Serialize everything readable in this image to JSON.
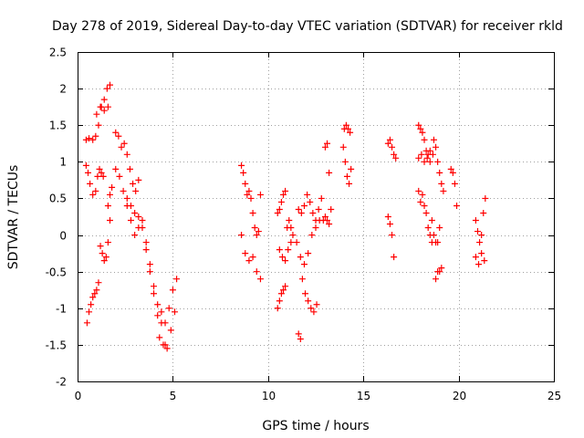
{
  "chart_data": {
    "type": "scatter",
    "title": "Day 278 of 2019, Sidereal Day-to-day VTEC variation (SDTVAR) for receiver rkld",
    "xlabel": "GPS time / hours",
    "ylabel": "SDTVAR / TECUs",
    "xlim": [
      0,
      25
    ],
    "ylim": [
      -2,
      2.5
    ],
    "xticks": [
      "0",
      "5",
      "10",
      "15",
      "20",
      "25"
    ],
    "yticks": [
      "-2",
      "-1.5",
      "-1",
      "-0.5",
      "0",
      "0.5",
      "1",
      "1.5",
      "2",
      "2.5"
    ],
    "grid": true,
    "marker": "+",
    "color": "#ff0000",
    "segments": [
      {
        "name": "a1",
        "x": [
          0.45,
          0.55,
          0.65,
          0.8,
          0.95,
          1.05,
          1.15,
          1.25,
          1.35
        ],
        "y": [
          0.95,
          0.85,
          0.7,
          0.55,
          0.6,
          0.8,
          0.9,
          0.85,
          0.8
        ]
      },
      {
        "name": "a2",
        "x": [
          0.45,
          0.6,
          0.8,
          0.95,
          1.1,
          1.25,
          1.4,
          1.55,
          1.7
        ],
        "y": [
          1.3,
          1.32,
          1.3,
          1.35,
          1.5,
          1.75,
          1.85,
          2.0,
          2.05
        ]
      },
      {
        "name": "a3",
        "x": [
          1.0,
          1.2,
          1.4,
          1.6
        ],
        "y": [
          1.65,
          1.75,
          1.7,
          1.75
        ]
      },
      {
        "name": "a4",
        "x": [
          0.5,
          0.6,
          0.7,
          0.8,
          0.9,
          1.0,
          1.1
        ],
        "y": [
          -1.2,
          -1.05,
          -0.95,
          -0.85,
          -0.8,
          -0.75,
          -0.65
        ]
      },
      {
        "name": "a5",
        "x": [
          1.2,
          1.3,
          1.4,
          1.5,
          1.6,
          1.7
        ],
        "y": [
          -0.15,
          -0.25,
          -0.35,
          -0.3,
          -0.1,
          0.2
        ]
      },
      {
        "name": "a6",
        "x": [
          1.6,
          1.7,
          1.8
        ],
        "y": [
          0.4,
          0.55,
          0.65
        ]
      },
      {
        "name": "b1",
        "x": [
          2.0,
          2.15,
          2.3,
          2.45,
          2.6,
          2.75,
          2.9,
          3.05,
          3.2
        ],
        "y": [
          1.4,
          1.35,
          1.2,
          1.25,
          1.1,
          0.9,
          0.7,
          0.6,
          0.75
        ]
      },
      {
        "name": "b2",
        "x": [
          2.0,
          2.2,
          2.4,
          2.6,
          2.8,
          3.0,
          3.2,
          3.4,
          3.6,
          3.8,
          4.0
        ],
        "y": [
          0.9,
          0.8,
          0.6,
          0.4,
          0.2,
          0.0,
          0.1,
          0.2,
          -0.2,
          -0.5,
          -0.8
        ]
      },
      {
        "name": "b3",
        "x": [
          2.6,
          2.8,
          3.0,
          3.2,
          3.4,
          3.6,
          3.8,
          4.0,
          4.2,
          4.4,
          4.6
        ],
        "y": [
          0.5,
          0.4,
          0.3,
          0.25,
          0.1,
          -0.1,
          -0.4,
          -0.7,
          -0.95,
          -1.2,
          -1.5
        ]
      },
      {
        "name": "b4",
        "x": [
          4.2,
          4.4,
          4.6,
          4.8,
          5.0,
          5.2
        ],
        "y": [
          -1.1,
          -1.05,
          -1.2,
          -1.0,
          -0.75,
          -0.6
        ]
      },
      {
        "name": "b5",
        "x": [
          4.3,
          4.5,
          4.7,
          4.9,
          5.1
        ],
        "y": [
          -1.4,
          -1.5,
          -1.55,
          -1.3,
          -1.05
        ]
      },
      {
        "name": "c1",
        "x": [
          8.6,
          8.7,
          8.8,
          8.9,
          9.0,
          9.1,
          9.2,
          9.3,
          9.4,
          9.5,
          9.6
        ],
        "y": [
          0.95,
          0.85,
          0.7,
          0.55,
          0.6,
          0.5,
          0.3,
          0.1,
          0.0,
          0.05,
          0.55
        ]
      },
      {
        "name": "c2",
        "x": [
          8.6,
          8.8,
          9.0,
          9.2,
          9.4,
          9.6
        ],
        "y": [
          0.0,
          -0.25,
          -0.35,
          -0.3,
          -0.5,
          -0.6
        ]
      },
      {
        "name": "d1",
        "x": [
          10.5,
          10.6,
          10.7,
          10.8,
          10.9
        ],
        "y": [
          0.3,
          0.35,
          0.45,
          0.55,
          0.6
        ]
      },
      {
        "name": "d2",
        "x": [
          10.5,
          10.6,
          10.7,
          10.8,
          10.9
        ],
        "y": [
          -1.0,
          -0.9,
          -0.8,
          -0.75,
          -0.7
        ]
      },
      {
        "name": "d3",
        "x": [
          10.6,
          10.75,
          10.9,
          11.05,
          11.2
        ],
        "y": [
          -0.2,
          -0.3,
          -0.35,
          -0.2,
          -0.1
        ]
      },
      {
        "name": "d4",
        "x": [
          11.0,
          11.1,
          11.2,
          11.3
        ],
        "y": [
          0.1,
          0.2,
          0.1,
          0.0
        ]
      },
      {
        "name": "d5",
        "x": [
          11.6,
          11.7
        ],
        "y": [
          -1.35,
          -1.42
        ]
      },
      {
        "name": "d6",
        "x": [
          11.6,
          11.75,
          11.9,
          12.05,
          12.2,
          12.35,
          12.5,
          12.65,
          12.8
        ],
        "y": [
          0.35,
          0.3,
          0.4,
          0.55,
          0.45,
          0.3,
          0.2,
          0.35,
          0.5
        ]
      },
      {
        "name": "d7",
        "x": [
          11.5,
          11.7,
          11.9,
          12.1,
          12.3,
          12.5,
          12.7
        ],
        "y": [
          -0.1,
          -0.3,
          -0.4,
          -0.25,
          0.0,
          0.1,
          0.2
        ]
      },
      {
        "name": "d8",
        "x": [
          11.8,
          11.95,
          12.1,
          12.25,
          12.4,
          12.55
        ],
        "y": [
          -0.6,
          -0.8,
          -0.9,
          -1.0,
          -1.05,
          -0.95
        ]
      },
      {
        "name": "d9",
        "x": [
          13.0,
          13.1,
          13.2,
          13.3
        ],
        "y": [
          1.2,
          1.25,
          0.85,
          0.35
        ]
      },
      {
        "name": "d10",
        "x": [
          12.9,
          13.0,
          13.1,
          13.2
        ],
        "y": [
          0.2,
          0.25,
          0.2,
          0.15
        ]
      },
      {
        "name": "e1",
        "x": [
          14.0,
          14.1,
          14.2,
          14.3
        ],
        "y": [
          1.45,
          1.5,
          1.45,
          1.4
        ]
      },
      {
        "name": "e2",
        "x": [
          13.95,
          14.05,
          14.15,
          14.25,
          14.35
        ],
        "y": [
          1.2,
          1.0,
          0.8,
          0.7,
          0.9
        ]
      },
      {
        "name": "f1",
        "x": [
          16.3,
          16.4,
          16.5,
          16.6,
          16.7
        ],
        "y": [
          1.25,
          1.3,
          1.2,
          1.1,
          1.05
        ]
      },
      {
        "name": "f2",
        "x": [
          16.3,
          16.4,
          16.5,
          16.6
        ],
        "y": [
          0.25,
          0.15,
          0.0,
          -0.3
        ]
      },
      {
        "name": "g1",
        "x": [
          17.9,
          18.0,
          18.1,
          18.2,
          18.3,
          18.4,
          18.5
        ],
        "y": [
          1.5,
          1.45,
          1.4,
          1.3,
          1.15,
          1.1,
          1.0
        ]
      },
      {
        "name": "g2",
        "x": [
          17.9,
          18.05,
          18.2,
          18.35,
          18.5,
          18.65
        ],
        "y": [
          1.05,
          1.1,
          1.0,
          1.05,
          1.15,
          1.1
        ]
      },
      {
        "name": "g3",
        "x": [
          17.9,
          18.0,
          18.1,
          18.2,
          18.3,
          18.4,
          18.5,
          18.6
        ],
        "y": [
          0.6,
          0.45,
          0.55,
          0.4,
          0.3,
          0.1,
          0.0,
          -0.1
        ]
      },
      {
        "name": "g4",
        "x": [
          18.7,
          18.8,
          18.9,
          19.0,
          19.1,
          19.2
        ],
        "y": [
          1.3,
          1.2,
          1.0,
          0.85,
          0.7,
          0.6
        ]
      },
      {
        "name": "g5",
        "x": [
          18.6,
          18.7,
          18.8,
          18.9,
          19.0
        ],
        "y": [
          0.2,
          0.0,
          -0.1,
          -0.1,
          0.1
        ]
      },
      {
        "name": "g6",
        "x": [
          18.8,
          18.9,
          19.0,
          19.1
        ],
        "y": [
          -0.6,
          -0.5,
          -0.5,
          -0.45
        ]
      },
      {
        "name": "g7",
        "x": [
          19.6,
          19.7,
          19.8,
          19.9
        ],
        "y": [
          0.9,
          0.85,
          0.7,
          0.4
        ]
      },
      {
        "name": "h1",
        "x": [
          20.9,
          21.0,
          21.1,
          21.2,
          21.3,
          21.4
        ],
        "y": [
          0.2,
          0.05,
          -0.1,
          0.0,
          0.3,
          0.5
        ]
      },
      {
        "name": "h2",
        "x": [
          20.9,
          21.05,
          21.2,
          21.35
        ],
        "y": [
          -0.3,
          -0.4,
          -0.25,
          -0.35
        ]
      }
    ]
  }
}
